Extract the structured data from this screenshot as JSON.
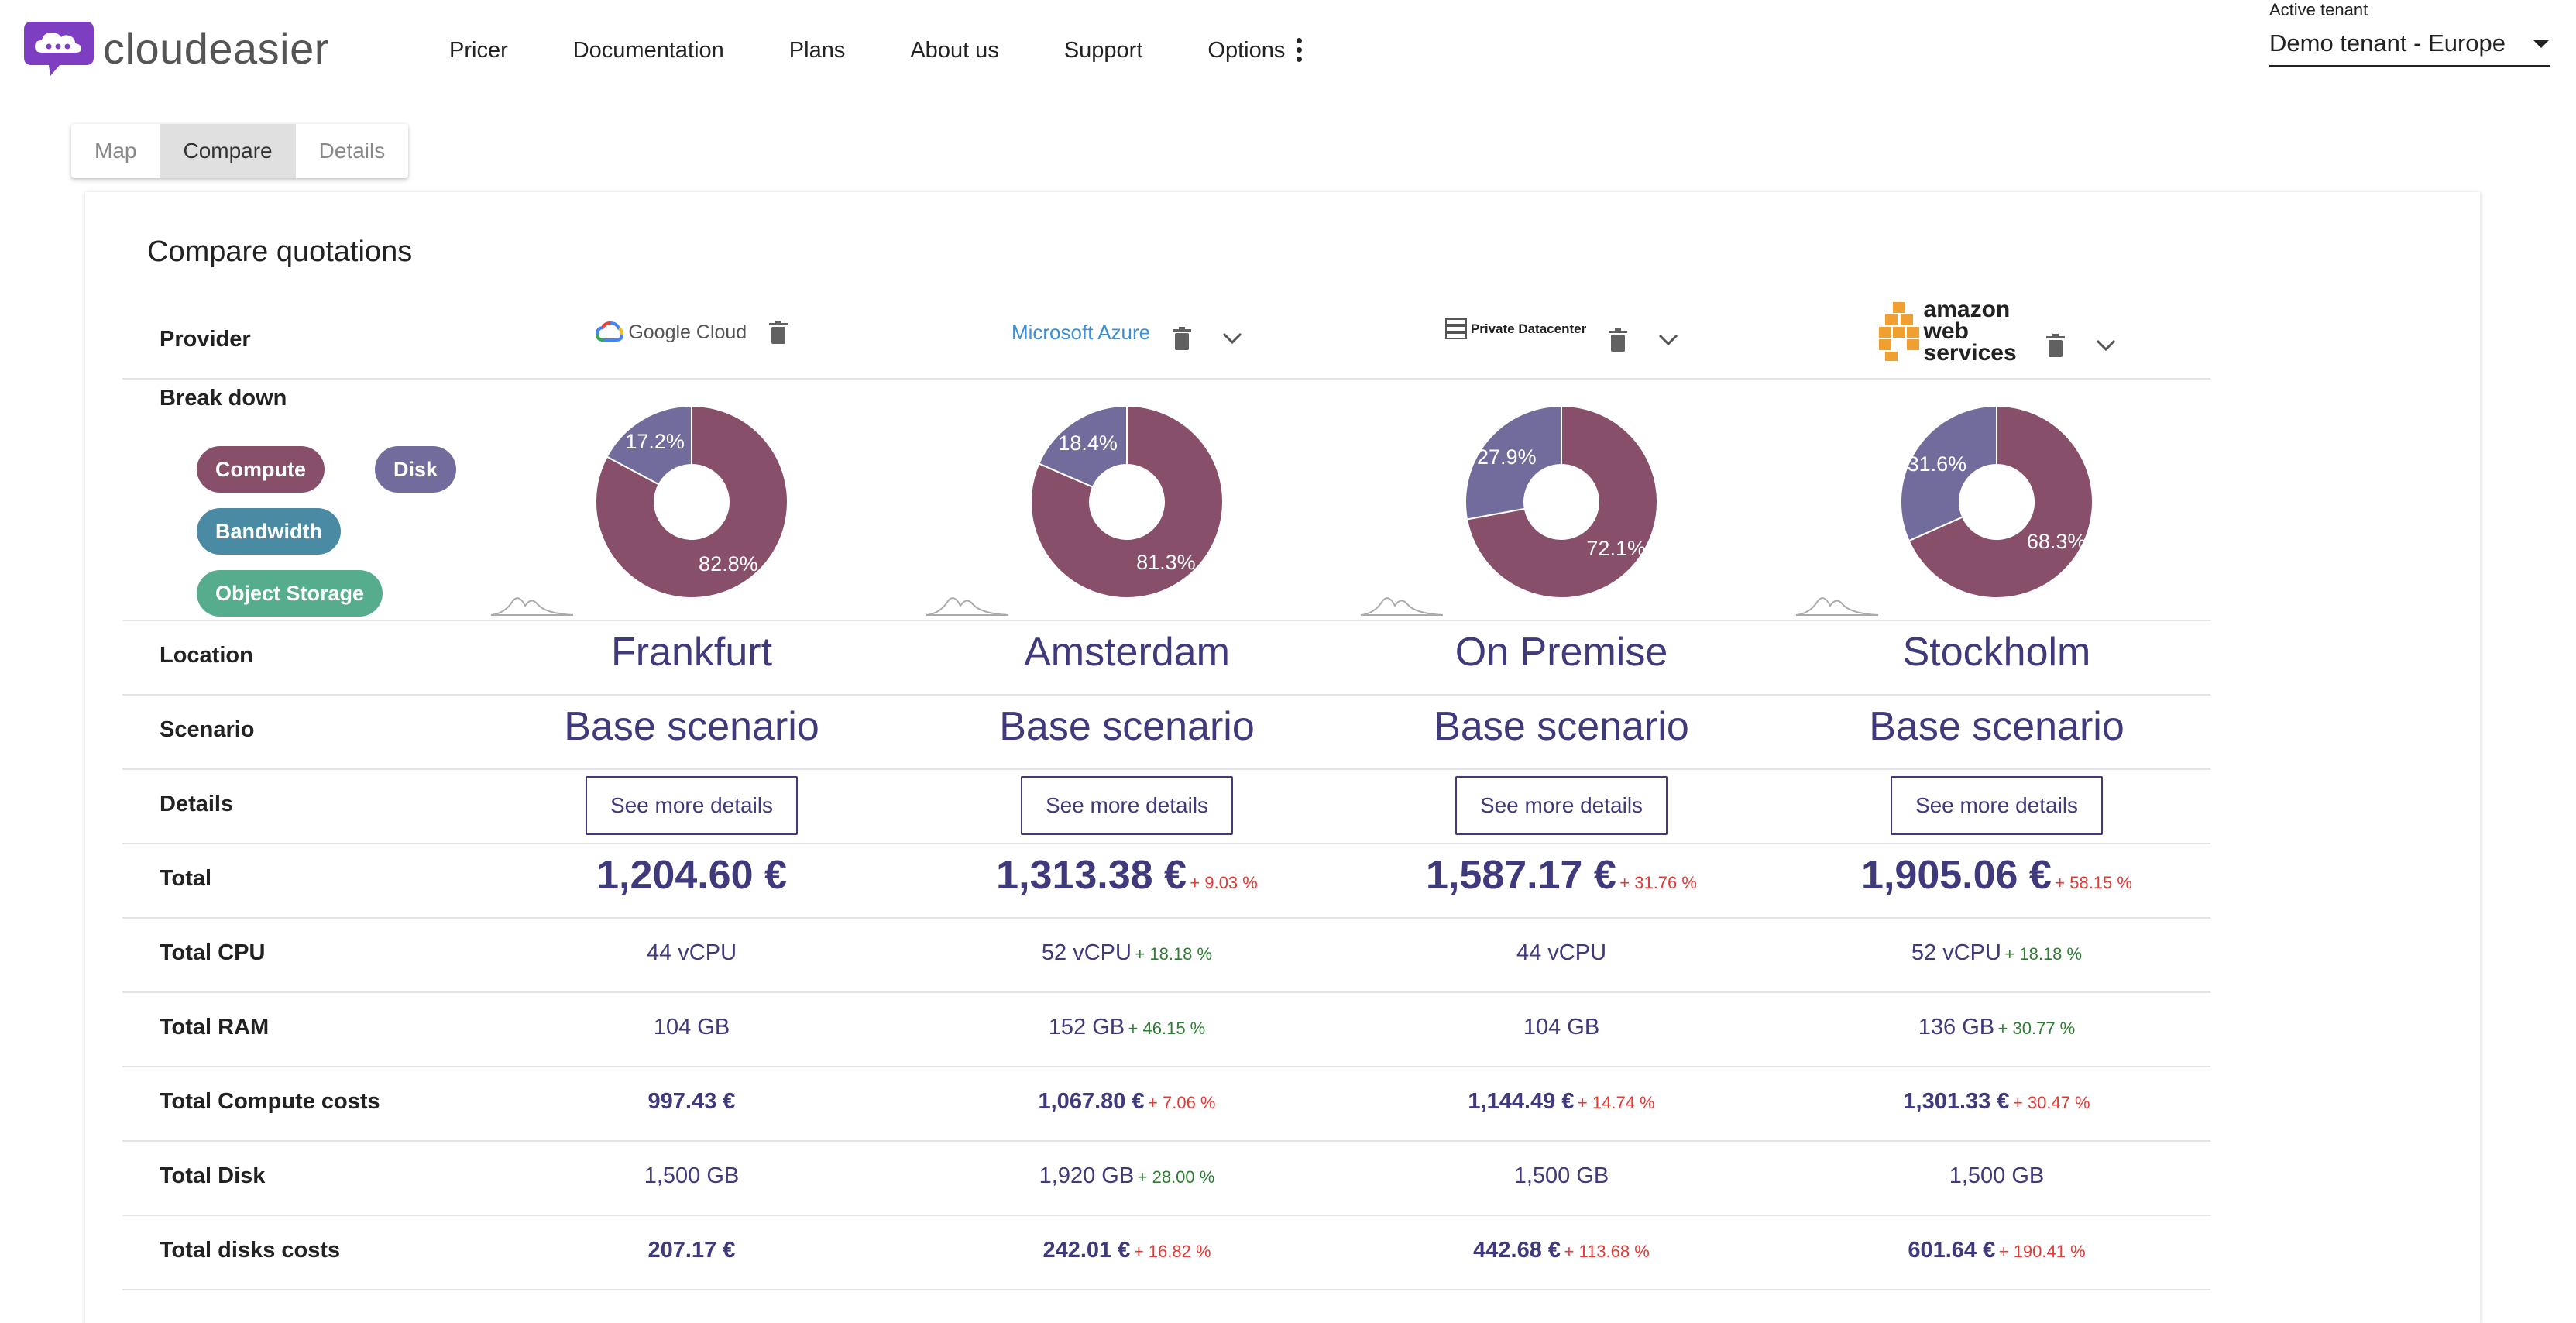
{
  "brand": {
    "name": "cloudeasier",
    "logo_color": "#7e3ec2"
  },
  "nav": {
    "items": [
      "Pricer",
      "Documentation",
      "Plans",
      "About us",
      "Support"
    ],
    "options_label": "Options"
  },
  "tenant": {
    "label": "Active tenant",
    "value": "Demo tenant - Europe"
  },
  "tabs": [
    {
      "label": "Map",
      "active": false
    },
    {
      "label": "Compare",
      "active": true
    },
    {
      "label": "Details",
      "active": false
    }
  ],
  "compare": {
    "title": "Compare quotations",
    "labels": {
      "provider": "Provider",
      "breakdown": "Break down",
      "location": "Location",
      "scenario": "Scenario",
      "details": "Details",
      "total": "Total",
      "total_cpu": "Total CPU",
      "total_ram": "Total RAM",
      "total_compute_costs": "Total Compute costs",
      "total_disk": "Total Disk",
      "total_disks_costs": "Total disks costs"
    },
    "legend": [
      {
        "label": "Compute",
        "color": "#874f69"
      },
      {
        "label": "Disk",
        "color": "#726c9c"
      },
      {
        "label": "Bandwidth",
        "color": "#4a8ba3"
      },
      {
        "label": "Object Storage",
        "color": "#56ad8e"
      }
    ],
    "details_button": "See more details",
    "providers": [
      {
        "name": "Google Cloud",
        "location": "Frankfurt",
        "scenario": "Base scenario",
        "total": "1,204.60 €",
        "total_pct": "",
        "cpu": "44 vCPU",
        "cpu_pct": "",
        "ram": "104 GB",
        "ram_pct": "",
        "compute_costs": "997.43 €",
        "compute_pct": "",
        "disk": "1,500 GB",
        "disk_pct": "",
        "disk_costs": "207.17 €",
        "disk_costs_pct": ""
      },
      {
        "name": "Microsoft Azure",
        "location": "Amsterdam",
        "scenario": "Base scenario",
        "total": "1,313.38 €",
        "total_pct": "+ 9.03 %",
        "cpu": "52 vCPU",
        "cpu_pct": "+ 18.18 %",
        "ram": "152 GB",
        "ram_pct": "+ 46.15 %",
        "compute_costs": "1,067.80 €",
        "compute_pct": "+ 7.06 %",
        "disk": "1,920 GB",
        "disk_pct": "+ 28.00 %",
        "disk_costs": "242.01 €",
        "disk_costs_pct": "+ 16.82 %"
      },
      {
        "name": "Private Datacenter",
        "location": "On Premise",
        "scenario": "Base scenario",
        "total": "1,587.17 €",
        "total_pct": "+ 31.76 %",
        "cpu": "44 vCPU",
        "cpu_pct": "",
        "ram": "104 GB",
        "ram_pct": "",
        "compute_costs": "1,144.49 €",
        "compute_pct": "+ 14.74 %",
        "disk": "1,500 GB",
        "disk_pct": "",
        "disk_costs": "442.68 €",
        "disk_costs_pct": "+ 113.68 %"
      },
      {
        "name": "amazon web services",
        "location": "Stockholm",
        "scenario": "Base scenario",
        "total": "1,905.06 €",
        "total_pct": "+ 58.15 %",
        "cpu": "52 vCPU",
        "cpu_pct": "+ 18.18 %",
        "ram": "136 GB",
        "ram_pct": "+ 30.77 %",
        "compute_costs": "1,301.33 €",
        "compute_pct": "+ 30.47 %",
        "disk": "1,500 GB",
        "disk_pct": "",
        "disk_costs": "601.64 €",
        "disk_costs_pct": "+ 190.41 %"
      }
    ],
    "breakdown_charts": [
      {
        "slices": [
          {
            "label": "Compute",
            "value": 82.8,
            "text": "82.8%"
          },
          {
            "label": "Disk",
            "value": 17.2,
            "text": "17.2%"
          }
        ]
      },
      {
        "slices": [
          {
            "label": "Compute",
            "value": 81.3,
            "text": "81.3%"
          },
          {
            "label": "Disk",
            "value": 18.4,
            "text": "18.4%"
          }
        ]
      },
      {
        "slices": [
          {
            "label": "Compute",
            "value": 72.1,
            "text": "72.1%"
          },
          {
            "label": "Disk",
            "value": 27.9,
            "text": "27.9%"
          }
        ]
      },
      {
        "slices": [
          {
            "label": "Compute",
            "value": 68.3,
            "text": "68.3%"
          },
          {
            "label": "Disk",
            "value": 31.6,
            "text": "31.6%"
          }
        ]
      }
    ],
    "colors": {
      "accent": "#3f3a7c",
      "increase": "#e53935",
      "decrease": "#2e7d32"
    }
  }
}
